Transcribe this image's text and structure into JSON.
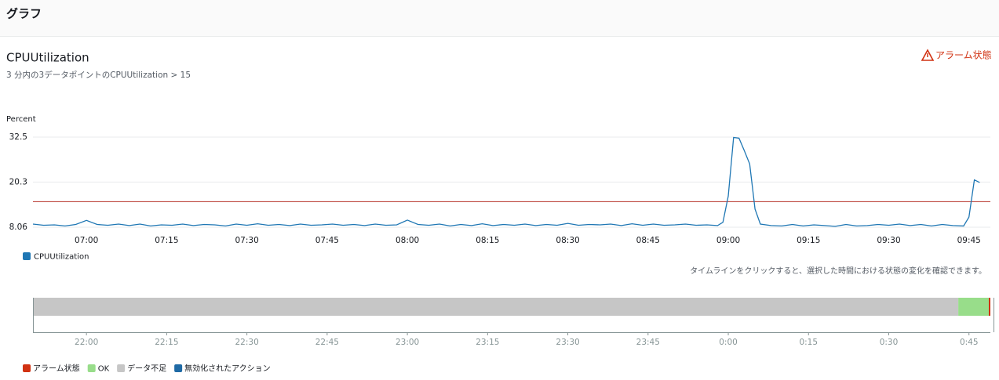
{
  "header": {
    "title": "グラフ"
  },
  "alarm_badge": "アラーム状態",
  "chart_data": {
    "type": "line",
    "title": "CPUUtilization",
    "subtitle": "3 分内の3データポイントのCPUUtilization > 15",
    "y_label": "Percent",
    "x": [
      "06:50",
      "06:52",
      "06:54",
      "06:56",
      "06:58",
      "07:00",
      "07:02",
      "07:04",
      "07:06",
      "07:08",
      "07:10",
      "07:12",
      "07:14",
      "07:16",
      "07:18",
      "07:20",
      "07:22",
      "07:24",
      "07:26",
      "07:28",
      "07:30",
      "07:32",
      "07:34",
      "07:36",
      "07:38",
      "07:40",
      "07:42",
      "07:44",
      "07:46",
      "07:48",
      "07:50",
      "07:52",
      "07:54",
      "07:56",
      "07:58",
      "08:00",
      "08:02",
      "08:04",
      "08:06",
      "08:08",
      "08:10",
      "08:12",
      "08:14",
      "08:16",
      "08:18",
      "08:20",
      "08:22",
      "08:24",
      "08:26",
      "08:28",
      "08:30",
      "08:32",
      "08:34",
      "08:36",
      "08:38",
      "08:40",
      "08:42",
      "08:44",
      "08:46",
      "08:48",
      "08:50",
      "08:52",
      "08:54",
      "08:56",
      "08:58",
      "08:59",
      "09:00",
      "09:01",
      "09:02",
      "09:03",
      "09:04",
      "09:05",
      "09:06",
      "09:08",
      "09:10",
      "09:12",
      "09:14",
      "09:16",
      "09:18",
      "09:20",
      "09:22",
      "09:24",
      "09:26",
      "09:28",
      "09:30",
      "09:32",
      "09:34",
      "09:36",
      "09:38",
      "09:40",
      "09:42",
      "09:44",
      "09:45",
      "09:46",
      "09:47"
    ],
    "series": [
      {
        "name": "CPUUtilization",
        "color": "#1f77b4",
        "values": [
          8.9,
          8.6,
          8.7,
          8.4,
          8.8,
          9.9,
          8.8,
          8.6,
          8.9,
          8.5,
          8.9,
          8.4,
          8.7,
          8.6,
          8.9,
          8.5,
          8.8,
          8.7,
          8.4,
          8.9,
          8.6,
          9.0,
          8.6,
          8.8,
          8.5,
          8.9,
          8.6,
          8.7,
          8.9,
          8.6,
          8.8,
          8.5,
          8.9,
          8.6,
          8.7,
          10.0,
          8.8,
          8.6,
          8.9,
          8.4,
          8.8,
          8.5,
          9.0,
          8.5,
          8.8,
          8.6,
          8.9,
          8.5,
          8.8,
          8.6,
          9.1,
          8.6,
          8.8,
          8.7,
          8.9,
          8.5,
          9.0,
          8.6,
          8.9,
          8.6,
          8.7,
          8.9,
          8.6,
          8.7,
          8.5,
          9.4,
          16.5,
          32.4,
          32.2,
          28.8,
          25.2,
          13.0,
          8.9,
          8.5,
          8.4,
          8.8,
          8.4,
          8.7,
          8.5,
          8.3,
          8.8,
          8.4,
          8.5,
          8.8,
          8.6,
          8.9,
          8.5,
          8.8,
          8.4,
          8.8,
          8.5,
          8.4,
          10.8,
          20.9,
          20.2
        ]
      }
    ],
    "threshold": 15,
    "threshold_color": "#b52e25",
    "xlim": [
      "06:50",
      "09:49"
    ],
    "xticks": [
      "07:00",
      "07:15",
      "07:30",
      "07:45",
      "08:00",
      "08:15",
      "08:30",
      "08:45",
      "09:00",
      "09:15",
      "09:30",
      "09:45"
    ],
    "ylim": [
      8.06,
      32.5
    ],
    "yticks": [
      8.06,
      20.3,
      32.5
    ],
    "grid": true
  },
  "timeline": {
    "note": "タイムラインをクリックすると、選択した時間における状態の変化を確認できます。",
    "xlim": [
      "21:50",
      "0:49"
    ],
    "xticks": [
      "22:00",
      "22:15",
      "22:30",
      "22:45",
      "23:00",
      "23:15",
      "23:30",
      "23:45",
      "0:00",
      "0:15",
      "0:30",
      "0:45"
    ],
    "segments": [
      {
        "state": "データ不足",
        "start": "21:50",
        "end": "0:43"
      },
      {
        "state": "OK",
        "start": "0:43",
        "end": "0:49"
      },
      {
        "state": "アラーム状態",
        "start": "0:49",
        "end": "0:49"
      }
    ],
    "legend": [
      {
        "name": "アラーム状態",
        "color": "#d13212"
      },
      {
        "name": "OK",
        "color": "#98dd8a"
      },
      {
        "name": "データ不足",
        "color": "#c6c6c6"
      },
      {
        "name": "無効化されたアクション",
        "color": "#1f6aa5"
      }
    ]
  }
}
